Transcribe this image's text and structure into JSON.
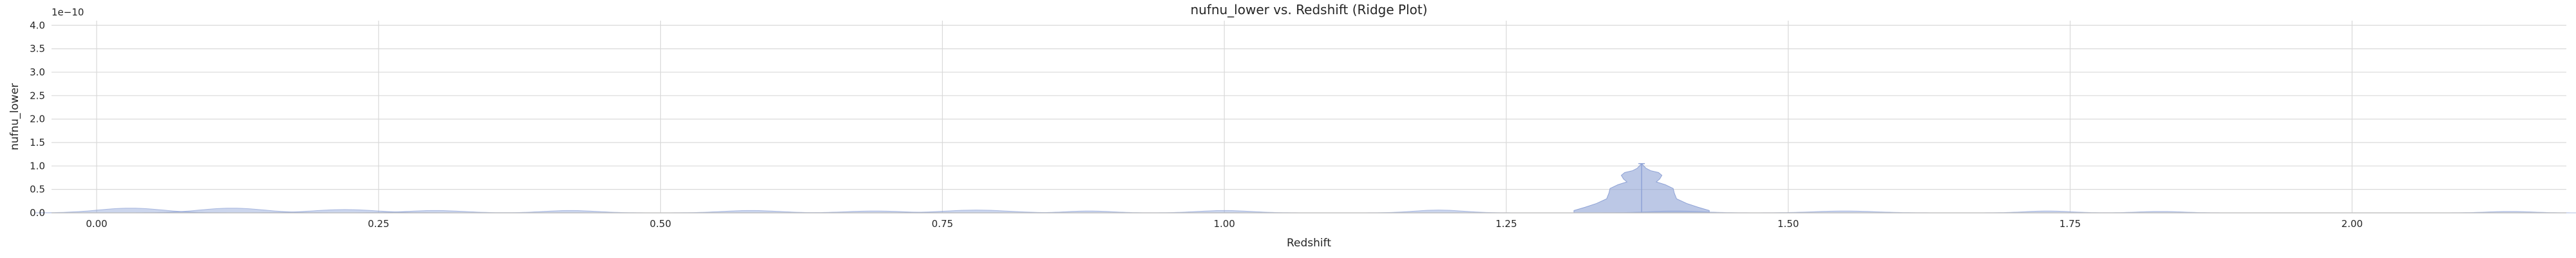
{
  "chart_data": {
    "type": "ridge",
    "title": "nufnu_lower vs. Redshift (Ridge Plot)",
    "xlabel": "Redshift",
    "ylabel": "nufnu_lower",
    "y_offset_label": "1e−10",
    "xlim": [
      -0.04,
      2.19
    ],
    "ylim": [
      0,
      4.1
    ],
    "y_scale_exponent": -10,
    "grid": true,
    "x_ticks": [
      0.0,
      0.25,
      0.5,
      0.75,
      1.0,
      1.25,
      1.5,
      1.75,
      2.0
    ],
    "x_tick_labels": [
      "0.00",
      "0.25",
      "0.50",
      "0.75",
      "1.00",
      "1.25",
      "1.50",
      "1.75",
      "2.00"
    ],
    "y_ticks": [
      0.0,
      0.5,
      1.0,
      1.5,
      2.0,
      2.5,
      3.0,
      3.5,
      4.0
    ],
    "y_tick_labels": [
      "0.0",
      "0.5",
      "1.0",
      "1.5",
      "2.0",
      "2.5",
      "3.0",
      "3.5",
      "4.0"
    ],
    "fill_color": "#8fa3d6",
    "grid_color": "#d9d9d9",
    "ridges": [
      {
        "x": 0.03,
        "width": 0.17,
        "peak": 0.1
      },
      {
        "x": 0.12,
        "width": 0.17,
        "peak": 0.1
      },
      {
        "x": 0.22,
        "width": 0.17,
        "peak": 0.07
      },
      {
        "x": 0.3,
        "width": 0.15,
        "peak": 0.05
      },
      {
        "x": 0.42,
        "width": 0.14,
        "peak": 0.05
      },
      {
        "x": 0.58,
        "width": 0.15,
        "peak": 0.05
      },
      {
        "x": 0.69,
        "width": 0.15,
        "peak": 0.04
      },
      {
        "x": 0.78,
        "width": 0.17,
        "peak": 0.06
      },
      {
        "x": 0.88,
        "width": 0.12,
        "peak": 0.04
      },
      {
        "x": 1.0,
        "width": 0.14,
        "peak": 0.05
      },
      {
        "x": 1.19,
        "width": 0.13,
        "peak": 0.06
      },
      {
        "x": 1.4,
        "width": 0.14,
        "peak": 0.04
      },
      {
        "x": 1.55,
        "width": 0.16,
        "peak": 0.04
      },
      {
        "x": 1.73,
        "width": 0.12,
        "peak": 0.04
      },
      {
        "x": 1.83,
        "width": 0.12,
        "peak": 0.03
      },
      {
        "x": 2.14,
        "width": 0.12,
        "peak": 0.03
      }
    ],
    "violin": {
      "x": 1.37,
      "max": 1.05,
      "profile": [
        {
          "y": 0.0,
          "half_width": 0.06
        },
        {
          "y": 0.05,
          "half_width": 0.06
        },
        {
          "y": 0.12,
          "half_width": 0.05
        },
        {
          "y": 0.2,
          "half_width": 0.04
        },
        {
          "y": 0.3,
          "half_width": 0.031
        },
        {
          "y": 0.42,
          "half_width": 0.029
        },
        {
          "y": 0.52,
          "half_width": 0.028
        },
        {
          "y": 0.6,
          "half_width": 0.021
        },
        {
          "y": 0.66,
          "half_width": 0.013
        },
        {
          "y": 0.72,
          "half_width": 0.016
        },
        {
          "y": 0.8,
          "half_width": 0.018
        },
        {
          "y": 0.86,
          "half_width": 0.015
        },
        {
          "y": 0.9,
          "half_width": 0.008
        },
        {
          "y": 0.95,
          "half_width": 0.004
        },
        {
          "y": 1.05,
          "half_width": 0.0
        }
      ]
    }
  }
}
